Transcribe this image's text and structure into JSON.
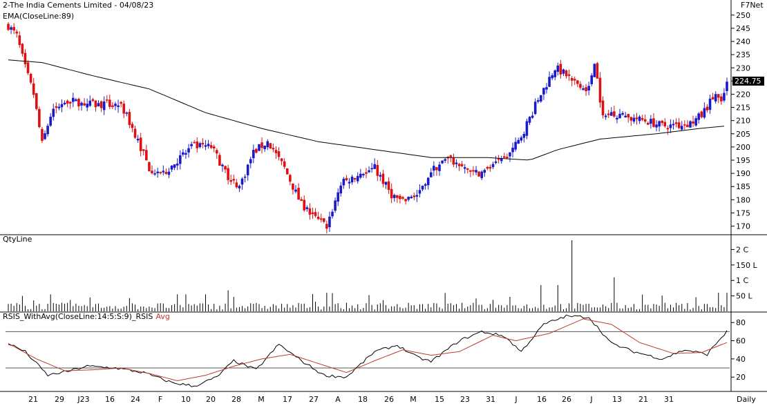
{
  "header": {
    "title": "2-The India Cements Limited - 04/08/23",
    "indicator": "EMA(CloseLine:89)",
    "brand": "F7Net",
    "last_price": "224.75"
  },
  "volume_panel": {
    "title": "QtyLine",
    "ticks": [
      "2 C",
      "150 L",
      "1 C",
      "50 L"
    ]
  },
  "rsi_panel": {
    "title": "RSIS_WithAvg(CloseLine:14:5:S:9)_RSIS",
    "avg_label": "Avg",
    "ticks": [
      80,
      60,
      40,
      20
    ],
    "levels": [
      70,
      30
    ]
  },
  "x_labels": [
    "21",
    "29",
    "J23",
    "16",
    "24",
    "F",
    "10",
    "20",
    "28",
    "M",
    "17",
    "27",
    "A",
    "18",
    "26",
    "M",
    "15",
    "23",
    "31",
    "J",
    "16",
    "26",
    "J",
    "13",
    "21",
    "31"
  ],
  "period_label": "Daily",
  "colors": {
    "up": "#1a1acc",
    "down": "#dd1111",
    "ema": "#000000",
    "rsi": "#000000",
    "rsi_avg": "#c0392b"
  },
  "chart_data": {
    "type": "candlestick",
    "price_ticks": [
      250,
      245,
      240,
      235,
      230,
      225,
      220,
      215,
      210,
      205,
      200,
      195,
      190,
      185,
      180,
      175,
      170
    ],
    "ylim": [
      167,
      251
    ],
    "key_closes": [
      [
        0,
        246
      ],
      [
        3,
        242
      ],
      [
        6,
        230
      ],
      [
        9,
        220
      ],
      [
        12,
        201
      ],
      [
        15,
        212
      ],
      [
        20,
        218
      ],
      [
        30,
        216
      ],
      [
        40,
        216
      ],
      [
        45,
        205
      ],
      [
        50,
        192
      ],
      [
        55,
        190
      ],
      [
        60,
        195
      ],
      [
        65,
        200
      ],
      [
        72,
        200
      ],
      [
        78,
        189
      ],
      [
        82,
        185
      ],
      [
        87,
        198
      ],
      [
        92,
        202
      ],
      [
        98,
        192
      ],
      [
        104,
        178
      ],
      [
        110,
        172
      ],
      [
        113,
        170
      ],
      [
        118,
        186
      ],
      [
        125,
        190
      ],
      [
        130,
        192
      ],
      [
        136,
        182
      ],
      [
        140,
        179
      ],
      [
        145,
        182
      ],
      [
        150,
        191
      ],
      [
        155,
        195
      ],
      [
        160,
        194
      ],
      [
        165,
        190
      ],
      [
        170,
        191
      ],
      [
        176,
        195
      ],
      [
        181,
        202
      ],
      [
        185,
        211
      ],
      [
        188,
        218
      ],
      [
        192,
        226
      ],
      [
        194,
        230
      ],
      [
        197,
        228
      ],
      [
        200,
        225
      ],
      [
        203,
        224
      ],
      [
        206,
        222
      ],
      [
        208,
        233
      ],
      [
        211,
        211
      ],
      [
        215,
        213
      ],
      [
        220,
        211
      ],
      [
        226,
        210
      ],
      [
        232,
        208
      ],
      [
        237,
        208
      ],
      [
        242,
        209
      ],
      [
        246,
        212
      ],
      [
        249,
        217
      ],
      [
        251,
        220
      ],
      [
        253,
        216
      ],
      [
        255,
        224.75
      ]
    ],
    "ema_points": [
      [
        0,
        233
      ],
      [
        12,
        232
      ],
      [
        30,
        227
      ],
      [
        50,
        222
      ],
      [
        70,
        213
      ],
      [
        90,
        207
      ],
      [
        110,
        202
      ],
      [
        130,
        199
      ],
      [
        150,
        196
      ],
      [
        170,
        196
      ],
      [
        185,
        195
      ],
      [
        195,
        199
      ],
      [
        210,
        203
      ],
      [
        230,
        205
      ],
      [
        245,
        207
      ],
      [
        255,
        208
      ]
    ],
    "volume_ticks": [
      {
        "label": "2 C",
        "value": 200
      },
      {
        "label": "150 L",
        "value": 150
      },
      {
        "label": "1 C",
        "value": 100
      },
      {
        "label": "50 L",
        "value": 50
      }
    ],
    "volume_spikes": [
      [
        5,
        50
      ],
      [
        15,
        55
      ],
      [
        63,
        55
      ],
      [
        70,
        55
      ],
      [
        78,
        68
      ],
      [
        113,
        60
      ],
      [
        189,
        85
      ],
      [
        195,
        85
      ],
      [
        200,
        230
      ],
      [
        215,
        110
      ],
      [
        252,
        60
      ],
      [
        255,
        60
      ]
    ],
    "rsi_points": [
      [
        0,
        57
      ],
      [
        6,
        48
      ],
      [
        14,
        22
      ],
      [
        22,
        27
      ],
      [
        28,
        32
      ],
      [
        38,
        30
      ],
      [
        48,
        25
      ],
      [
        58,
        14
      ],
      [
        66,
        10
      ],
      [
        74,
        20
      ],
      [
        80,
        38
      ],
      [
        88,
        28
      ],
      [
        96,
        56
      ],
      [
        104,
        38
      ],
      [
        112,
        22
      ],
      [
        120,
        20
      ],
      [
        130,
        48
      ],
      [
        138,
        55
      ],
      [
        145,
        42
      ],
      [
        150,
        37
      ],
      [
        160,
        60
      ],
      [
        168,
        70
      ],
      [
        176,
        65
      ],
      [
        182,
        48
      ],
      [
        190,
        78
      ],
      [
        198,
        87
      ],
      [
        206,
        86
      ],
      [
        214,
        57
      ],
      [
        222,
        48
      ],
      [
        232,
        40
      ],
      [
        240,
        50
      ],
      [
        248,
        45
      ],
      [
        252,
        60
      ],
      [
        255,
        70
      ]
    ],
    "rsi_avg_points": [
      [
        0,
        57
      ],
      [
        10,
        40
      ],
      [
        20,
        27
      ],
      [
        30,
        28
      ],
      [
        40,
        30
      ],
      [
        50,
        24
      ],
      [
        60,
        16
      ],
      [
        70,
        22
      ],
      [
        80,
        32
      ],
      [
        90,
        40
      ],
      [
        100,
        45
      ],
      [
        110,
        35
      ],
      [
        120,
        25
      ],
      [
        130,
        38
      ],
      [
        140,
        50
      ],
      [
        150,
        44
      ],
      [
        160,
        48
      ],
      [
        172,
        66
      ],
      [
        180,
        60
      ],
      [
        192,
        68
      ],
      [
        204,
        84
      ],
      [
        214,
        78
      ],
      [
        224,
        58
      ],
      [
        236,
        46
      ],
      [
        246,
        47
      ],
      [
        255,
        58
      ]
    ]
  }
}
